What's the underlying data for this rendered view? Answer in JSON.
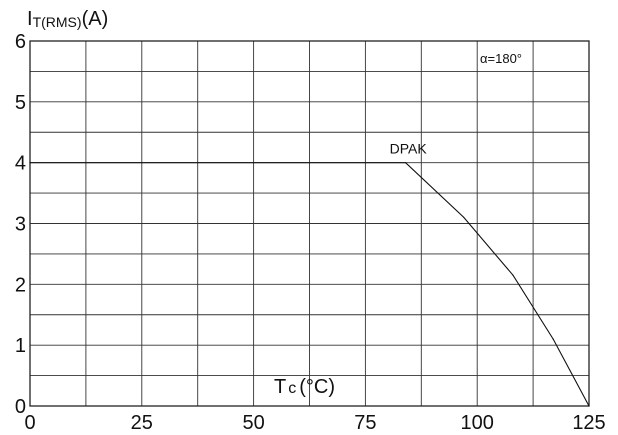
{
  "chart_data": {
    "type": "line",
    "ylabel_main": "I",
    "ylabel_sub": "T(RMS)",
    "ylabel_unit": "(A)",
    "xlabel_main": "T",
    "xlabel_sub": "c",
    "xlabel_unit": "(°C)",
    "xlim": [
      0,
      125
    ],
    "ylim": [
      0,
      6
    ],
    "x_ticks": [
      "0",
      "25",
      "50",
      "75",
      "100",
      "125"
    ],
    "y_ticks": [
      "0",
      "1",
      "2",
      "3",
      "4",
      "5",
      "6"
    ],
    "grid": true,
    "annotation": "α=180°",
    "series": [
      {
        "name": "DPAK",
        "x": [
          0,
          84,
          97,
          108,
          117,
          125
        ],
        "y": [
          4,
          4,
          3.1,
          2.15,
          1.1,
          0
        ]
      }
    ]
  }
}
